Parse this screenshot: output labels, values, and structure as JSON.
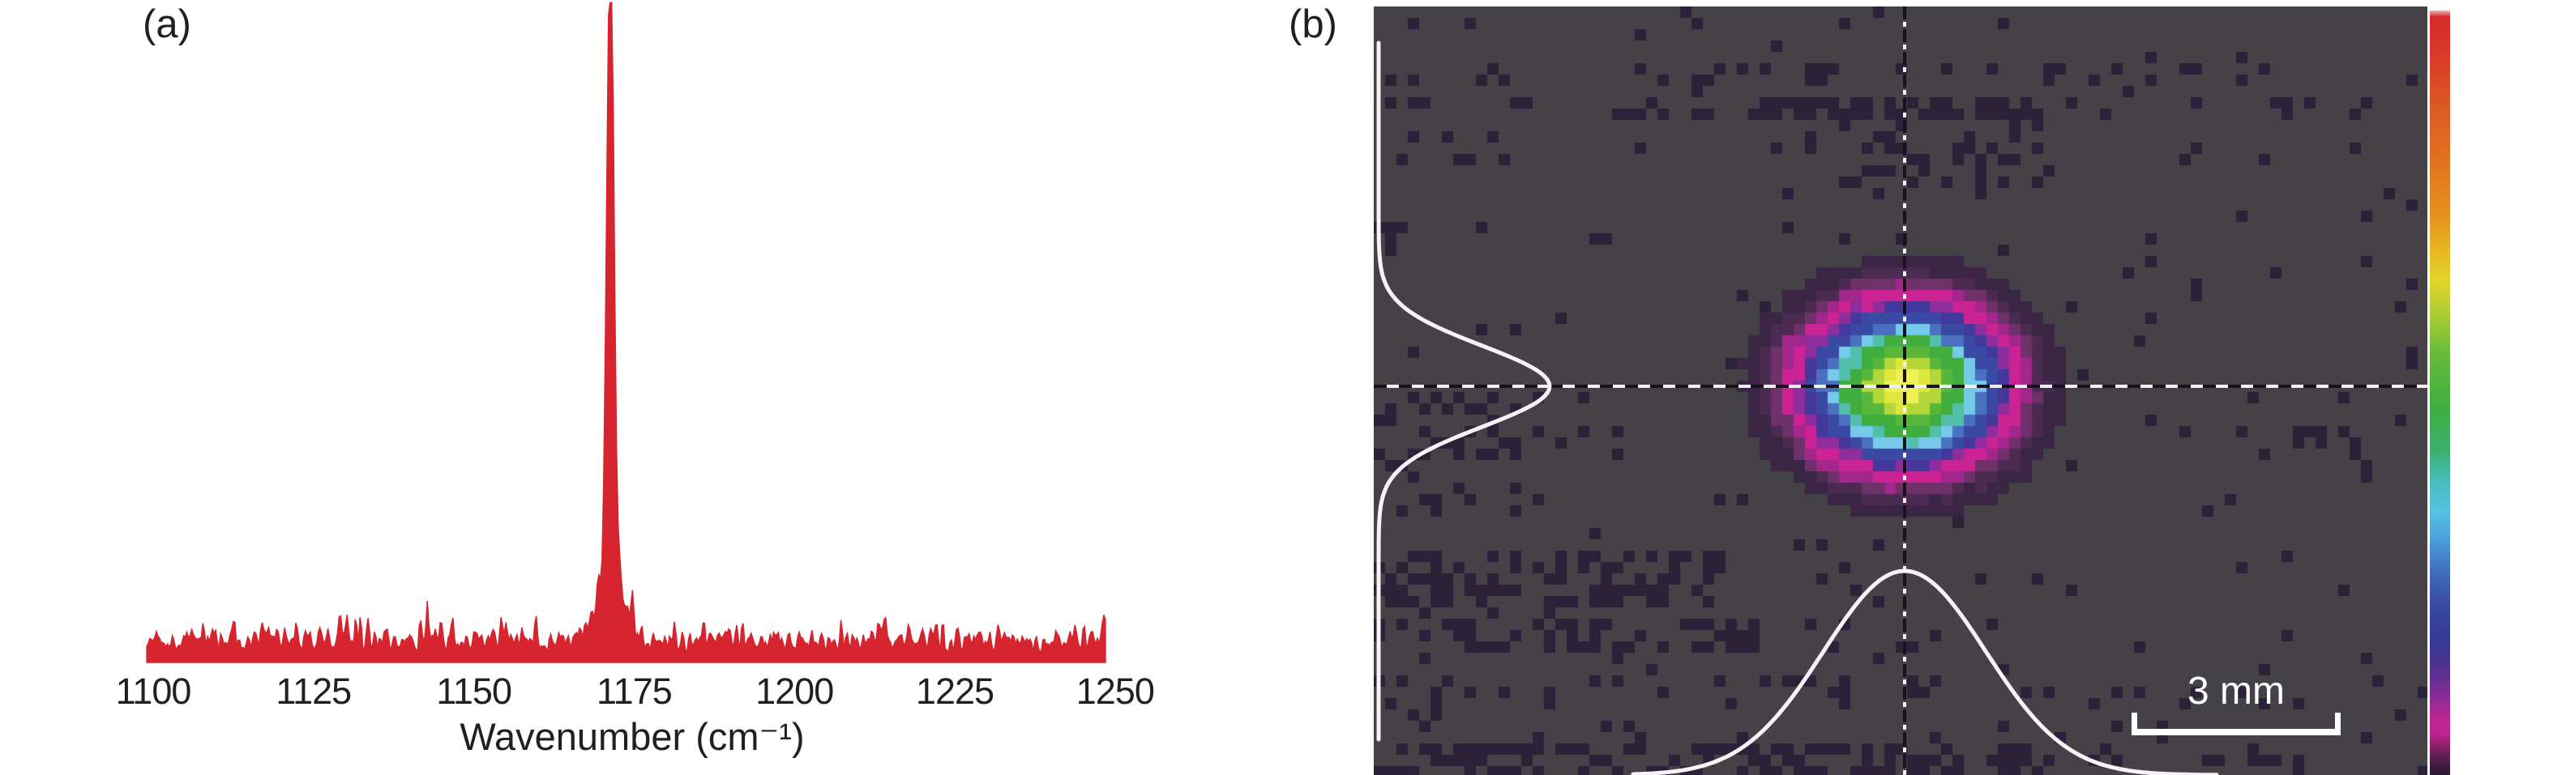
{
  "figure": {
    "panel_a_label": "(a)",
    "panel_b_label": "(b)"
  },
  "chart_data": [
    {
      "id": "raman-spectrum",
      "panel": "(a)",
      "type": "line",
      "title": "",
      "xlabel": "Wavenumber (cm⁻¹)",
      "ylabel": "",
      "x_ticks": [
        1100,
        1125,
        1150,
        1175,
        1200,
        1225,
        1250
      ],
      "xlim": [
        1099,
        1248.5
      ],
      "ylim": [
        0,
        1.05
      ],
      "grid": false,
      "legend": null,
      "line_color": "#d6252e",
      "fill": true,
      "series": [
        {
          "name": "spectrum",
          "peak": {
            "center_cm1": 1171.3,
            "height": 1.0,
            "sigma_cm1": 0.55
          },
          "pedestal": {
            "center_cm1": 1171.3,
            "height": 0.085,
            "sigma_cm1": 2.4
          },
          "noise_floor": {
            "baseline": 0.012,
            "typical": 0.05,
            "max": 0.14
          }
        }
      ],
      "noise_seed": 1337
    },
    {
      "id": "beam-profile",
      "panel": "(b)",
      "type": "heatmap",
      "description": "Pixelated 2D laser beam intensity profile: elliptical Gaussian spot with rainbow false-color rings, dashed crosshair through the centroid, white Gaussian cross-section curves along left and bottom edges, vertical rainbow intensity colorbar at right, 3 mm scale bar",
      "background_color": "#454247",
      "noise_pixel_color": "#2b2138",
      "pixel_size": 14,
      "noise_seed": 77,
      "base_noise_density": 0.022,
      "noise_bands": [
        [
          47,
          62,
          280,
          660,
          0.05
        ],
        [
          72,
          92,
          0,
          1300,
          0.14
        ],
        [
          112,
          142,
          480,
          850,
          0.8
        ],
        [
          112,
          142,
          0,
          480,
          0.22
        ],
        [
          112,
          142,
          850,
          1300,
          0.15
        ],
        [
          142,
          225,
          530,
          830,
          0.3
        ],
        [
          150,
          196,
          0,
          165,
          0.28
        ],
        [
          218,
          242,
          490,
          790,
          0.12
        ],
        [
          262,
          290,
          0,
          220,
          0.2
        ],
        [
          262,
          290,
          495,
          600,
          0.1
        ],
        [
          312,
          336,
          0,
          95,
          0.12
        ],
        [
          312,
          336,
          1180,
          1300,
          0.12
        ],
        [
          425,
          455,
          25,
          125,
          0.1
        ],
        [
          480,
          512,
          0,
          260,
          0.2
        ],
        [
          480,
          512,
          875,
          1035,
          0.08
        ],
        [
          480,
          512,
          1195,
          1300,
          0.1
        ],
        [
          512,
          556,
          0,
          310,
          0.26
        ],
        [
          512,
          556,
          975,
          1300,
          0.16
        ],
        [
          566,
          624,
          0,
          215,
          0.2
        ],
        [
          672,
          742,
          0,
          440,
          0.5
        ],
        [
          755,
          798,
          0,
          470,
          0.42
        ],
        [
          755,
          798,
          470,
          715,
          0.15
        ],
        [
          828,
          868,
          0,
          1300,
          0.16
        ],
        [
          868,
          912,
          0,
          1300,
          0.07
        ],
        [
          912,
          949,
          0,
          830,
          0.45
        ],
        [
          912,
          949,
          830,
          1300,
          0.14
        ]
      ],
      "spot": {
        "center_x": 655,
        "center_y": 469,
        "radius_x": 192,
        "radius_y": 156,
        "ring_stops": [
          [
            0.1,
            "#eef156"
          ],
          [
            0.17,
            "#dfe63e"
          ],
          [
            0.23,
            "#b3d739"
          ],
          [
            0.3,
            "#58b73b"
          ],
          [
            0.385,
            "#3fae3f"
          ],
          [
            0.425,
            "#52bfa9"
          ],
          [
            0.47,
            "#74cae8"
          ],
          [
            0.52,
            "#4a70c0"
          ],
          [
            0.6,
            "#3a4aa4"
          ],
          [
            0.645,
            "#45389d"
          ],
          [
            0.685,
            "#8e2d9b"
          ],
          [
            0.765,
            "#cb2394"
          ],
          [
            0.81,
            "#a2268b"
          ],
          [
            0.865,
            "#6f3169"
          ],
          [
            0.93,
            "#4b2b52"
          ],
          [
            1.05,
            "#3a2545"
          ]
        ]
      },
      "crosshair": {
        "dark_color": "#17121d",
        "light_color": "#f2eff4",
        "h_y": 469,
        "v_x": 655
      },
      "profiles": {
        "color": "#f5f3f6",
        "left": {
          "baseline_x": 6,
          "amplitude": 211,
          "center_y": 469,
          "sigma": 50,
          "y_from": 45,
          "y_to": 908
        },
        "bottom": {
          "baseline_y": 949,
          "amplitude": 252,
          "center_x": 655,
          "sigma": 100,
          "x_from": 320,
          "x_to": 1040
        }
      },
      "colorbar": {
        "orientation": "vertical",
        "position": "right",
        "stops": [
          [
            0.0,
            "#efb6bb"
          ],
          [
            0.008,
            "#d62a2c"
          ],
          [
            0.06,
            "#d93b28"
          ],
          [
            0.13,
            "#dd5a23"
          ],
          [
            0.2,
            "#e2731f"
          ],
          [
            0.27,
            "#e6921d"
          ],
          [
            0.32,
            "#e7bc22"
          ],
          [
            0.355,
            "#e0d52c"
          ],
          [
            0.4,
            "#a8cc33"
          ],
          [
            0.45,
            "#66bb3a"
          ],
          [
            0.52,
            "#3fae3f"
          ],
          [
            0.575,
            "#3bb06c"
          ],
          [
            0.615,
            "#46bdbb"
          ],
          [
            0.655,
            "#55c3e2"
          ],
          [
            0.695,
            "#4b9bd8"
          ],
          [
            0.735,
            "#3f6cbd"
          ],
          [
            0.775,
            "#3a4ba6"
          ],
          [
            0.82,
            "#333a95"
          ],
          [
            0.85,
            "#473490"
          ],
          [
            0.875,
            "#652f91"
          ],
          [
            0.9,
            "#8f2b96"
          ],
          [
            0.925,
            "#bb2494"
          ],
          [
            0.945,
            "#c22391"
          ],
          [
            0.96,
            "#93216f"
          ],
          [
            0.975,
            "#5e1f55"
          ],
          [
            0.99,
            "#3a1d3d"
          ],
          [
            1.0,
            "#2a1a31"
          ]
        ]
      },
      "scale_bar": {
        "label": "3 mm"
      }
    }
  ]
}
